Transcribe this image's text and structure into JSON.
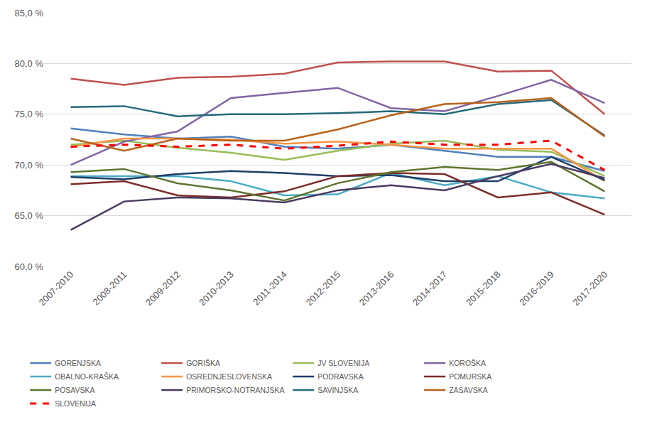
{
  "chart_data": {
    "type": "line",
    "categories": [
      "2007-2010",
      "2008-2011",
      "2009-2012",
      "2010-2013",
      "2011-2014",
      "2012-2015",
      "2013-2016",
      "2014-2017",
      "2015-2018",
      "2016-2019",
      "2017-2020"
    ],
    "series": [
      {
        "name": "GORENJSKA",
        "color": "#4F81BD",
        "values": [
          73.6,
          73.0,
          72.6,
          72.8,
          71.8,
          71.6,
          72.0,
          71.4,
          70.8,
          70.8,
          69.4
        ]
      },
      {
        "name": "GORIŠKA",
        "color": "#C0504D",
        "values": [
          78.5,
          77.9,
          78.6,
          78.7,
          79.0,
          80.1,
          80.2,
          80.2,
          79.2,
          79.3,
          75.0
        ]
      },
      {
        "name": "JV SLOVENIJA",
        "color": "#9BBB59",
        "values": [
          72.0,
          72.4,
          71.7,
          71.2,
          70.5,
          71.4,
          72.1,
          72.4,
          71.5,
          71.3,
          68.9
        ]
      },
      {
        "name": "KOROŠKA",
        "color": "#8064A2",
        "values": [
          70.0,
          72.3,
          73.3,
          76.6,
          77.1,
          77.6,
          75.6,
          75.3,
          76.8,
          78.4,
          76.1
        ]
      },
      {
        "name": "OBALNO-KRAŠKA",
        "color": "#4BACC6",
        "values": [
          68.9,
          68.9,
          68.9,
          68.4,
          67.0,
          67.1,
          69.2,
          68.0,
          68.9,
          67.3,
          66.7
        ]
      },
      {
        "name": "OSREDNJESLOVENSKA",
        "color": "#F79646",
        "values": [
          71.8,
          72.6,
          72.6,
          72.5,
          72.1,
          72.3,
          72.0,
          71.6,
          71.6,
          71.6,
          68.4
        ]
      },
      {
        "name": "PODRAVSKA",
        "color": "#1F3F66",
        "values": [
          68.8,
          68.6,
          69.1,
          69.4,
          69.2,
          68.9,
          69.0,
          68.4,
          68.4,
          70.8,
          68.5
        ]
      },
      {
        "name": "POMURSKA",
        "color": "#7B2C2A",
        "values": [
          68.1,
          68.4,
          67.0,
          66.8,
          67.4,
          68.9,
          69.2,
          69.1,
          66.8,
          67.3,
          65.1
        ]
      },
      {
        "name": "POSAVSKA",
        "color": "#5F7530",
        "values": [
          69.3,
          69.6,
          68.2,
          67.5,
          66.5,
          68.2,
          69.3,
          69.8,
          69.5,
          70.3,
          67.4
        ]
      },
      {
        "name": "PRIMORSKO-NOTRANJSKA",
        "color": "#4A3A60",
        "values": [
          63.6,
          66.4,
          66.8,
          66.7,
          66.3,
          67.5,
          68.0,
          67.5,
          68.9,
          70.1,
          68.7
        ]
      },
      {
        "name": "SAVINJSKA",
        "color": "#276A7C",
        "values": [
          75.7,
          75.8,
          74.8,
          75.0,
          75.0,
          75.1,
          75.3,
          75.0,
          76.0,
          76.4,
          72.9
        ]
      },
      {
        "name": "ZASAVSKA",
        "color": "#B8621B",
        "values": [
          72.6,
          71.4,
          72.6,
          72.4,
          72.4,
          73.5,
          74.9,
          76.0,
          76.2,
          76.6,
          72.8
        ]
      },
      {
        "name": "SLOVENIJA",
        "color": "#FF0000",
        "line_style": "dashed",
        "values": [
          71.8,
          72.0,
          71.8,
          72.0,
          71.6,
          71.9,
          72.3,
          72.0,
          72.0,
          72.4,
          69.5
        ]
      }
    ],
    "ylim": [
      60,
      85
    ],
    "yticks": [
      {
        "value": 60,
        "label": "60,0 %"
      },
      {
        "value": 65,
        "label": "65,0 %"
      },
      {
        "value": 70,
        "label": "70,0 %"
      },
      {
        "value": 75,
        "label": "75,0 %"
      },
      {
        "value": 80,
        "label": "80,0 %"
      },
      {
        "value": 85,
        "label": "85,0 %"
      }
    ],
    "grid": true,
    "legend": "bottom"
  }
}
